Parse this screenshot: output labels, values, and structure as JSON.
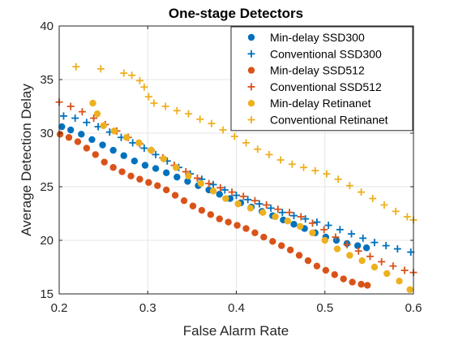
{
  "chart_data": {
    "type": "scatter",
    "title": "One-stage Detectors",
    "xlabel": "False Alarm Rate",
    "ylabel": "Average Detection Delay",
    "xlim": [
      0.2,
      0.6
    ],
    "ylim": [
      15,
      40
    ],
    "xticks": [
      0.2,
      0.3,
      0.4,
      0.5,
      0.6
    ],
    "yticks": [
      15,
      20,
      25,
      30,
      35,
      40
    ],
    "xtick_labels": [
      "0.2",
      "0.3",
      "0.4",
      "0.5",
      "0.6"
    ],
    "ytick_labels": [
      "15",
      "20",
      "25",
      "30",
      "35",
      "40"
    ],
    "grid": true,
    "legend_position": "top-right",
    "series": [
      {
        "name": "Min-delay SSD300",
        "marker": "dot",
        "color": "#0072BD",
        "points": [
          [
            0.203,
            30.6
          ],
          [
            0.213,
            30.3
          ],
          [
            0.225,
            29.9
          ],
          [
            0.237,
            29.4
          ],
          [
            0.249,
            28.9
          ],
          [
            0.261,
            28.4
          ],
          [
            0.273,
            27.9
          ],
          [
            0.285,
            27.4
          ],
          [
            0.297,
            27.0
          ],
          [
            0.309,
            26.7
          ],
          [
            0.321,
            26.3
          ],
          [
            0.333,
            25.9
          ],
          [
            0.345,
            25.5
          ],
          [
            0.357,
            25.1
          ],
          [
            0.369,
            24.7
          ],
          [
            0.381,
            24.3
          ],
          [
            0.393,
            23.9
          ],
          [
            0.405,
            23.5
          ],
          [
            0.417,
            23.1
          ],
          [
            0.429,
            22.7
          ],
          [
            0.441,
            22.3
          ],
          [
            0.453,
            21.9
          ],
          [
            0.465,
            21.5
          ],
          [
            0.477,
            21.1
          ],
          [
            0.489,
            20.7
          ],
          [
            0.501,
            20.3
          ],
          [
            0.513,
            20.0
          ],
          [
            0.525,
            19.7
          ],
          [
            0.537,
            19.5
          ],
          [
            0.547,
            19.3
          ]
        ]
      },
      {
        "name": "Conventional SSD300",
        "marker": "plus",
        "color": "#0072BD",
        "points": [
          [
            0.205,
            31.6
          ],
          [
            0.218,
            31.4
          ],
          [
            0.231,
            31.0
          ],
          [
            0.244,
            30.6
          ],
          [
            0.257,
            30.1
          ],
          [
            0.27,
            29.6
          ],
          [
            0.283,
            29.1
          ],
          [
            0.296,
            28.6
          ],
          [
            0.309,
            28.0
          ],
          [
            0.322,
            27.4
          ],
          [
            0.335,
            26.8
          ],
          [
            0.348,
            26.2
          ],
          [
            0.361,
            25.7
          ],
          [
            0.374,
            25.2
          ],
          [
            0.387,
            24.7
          ],
          [
            0.4,
            24.2
          ],
          [
            0.413,
            23.8
          ],
          [
            0.426,
            23.4
          ],
          [
            0.439,
            23.0
          ],
          [
            0.452,
            22.6
          ],
          [
            0.465,
            22.3
          ],
          [
            0.478,
            22.0
          ],
          [
            0.491,
            21.7
          ],
          [
            0.504,
            21.4
          ],
          [
            0.517,
            21.0
          ],
          [
            0.53,
            20.6
          ],
          [
            0.543,
            20.2
          ],
          [
            0.556,
            19.8
          ],
          [
            0.569,
            19.5
          ],
          [
            0.582,
            19.2
          ],
          [
            0.597,
            18.9
          ]
        ]
      },
      {
        "name": "Min-delay SSD512",
        "marker": "dot",
        "color": "#D95319",
        "points": [
          [
            0.201,
            29.9
          ],
          [
            0.211,
            29.6
          ],
          [
            0.221,
            29.2
          ],
          [
            0.231,
            28.6
          ],
          [
            0.241,
            28.0
          ],
          [
            0.251,
            27.3
          ],
          [
            0.261,
            26.8
          ],
          [
            0.271,
            26.4
          ],
          [
            0.281,
            26.0
          ],
          [
            0.291,
            25.7
          ],
          [
            0.301,
            25.4
          ],
          [
            0.311,
            25.1
          ],
          [
            0.321,
            24.7
          ],
          [
            0.331,
            24.2
          ],
          [
            0.341,
            23.7
          ],
          [
            0.351,
            23.2
          ],
          [
            0.361,
            22.8
          ],
          [
            0.371,
            22.4
          ],
          [
            0.381,
            22.0
          ],
          [
            0.391,
            21.7
          ],
          [
            0.401,
            21.4
          ],
          [
            0.411,
            21.1
          ],
          [
            0.421,
            20.7
          ],
          [
            0.431,
            20.3
          ],
          [
            0.441,
            19.9
          ],
          [
            0.451,
            19.5
          ],
          [
            0.461,
            19.1
          ],
          [
            0.471,
            18.6
          ],
          [
            0.481,
            18.1
          ],
          [
            0.491,
            17.6
          ],
          [
            0.501,
            17.2
          ],
          [
            0.511,
            16.8
          ],
          [
            0.521,
            16.4
          ],
          [
            0.531,
            16.1
          ],
          [
            0.541,
            15.9
          ],
          [
            0.548,
            15.8
          ]
        ]
      },
      {
        "name": "Conventional SSD512",
        "marker": "plus",
        "color": "#D95319",
        "points": [
          [
            0.2,
            32.9
          ],
          [
            0.213,
            32.5
          ],
          [
            0.226,
            32.0
          ],
          [
            0.239,
            31.4
          ],
          [
            0.252,
            30.8
          ],
          [
            0.265,
            30.2
          ],
          [
            0.278,
            29.6
          ],
          [
            0.291,
            29.0
          ],
          [
            0.304,
            28.4
          ],
          [
            0.317,
            27.7
          ],
          [
            0.33,
            27.0
          ],
          [
            0.343,
            26.4
          ],
          [
            0.356,
            25.8
          ],
          [
            0.369,
            25.3
          ],
          [
            0.382,
            24.9
          ],
          [
            0.395,
            24.5
          ],
          [
            0.408,
            24.1
          ],
          [
            0.421,
            23.7
          ],
          [
            0.434,
            23.3
          ],
          [
            0.447,
            22.9
          ],
          [
            0.46,
            22.6
          ],
          [
            0.473,
            22.2
          ],
          [
            0.486,
            21.6
          ],
          [
            0.499,
            21.0
          ],
          [
            0.512,
            20.3
          ],
          [
            0.525,
            19.6
          ],
          [
            0.538,
            19.0
          ],
          [
            0.551,
            18.5
          ],
          [
            0.564,
            18.0
          ],
          [
            0.577,
            17.6
          ],
          [
            0.59,
            17.2
          ],
          [
            0.6,
            17.0
          ]
        ]
      },
      {
        "name": "Min-delay Retinanet",
        "marker": "dot",
        "color": "#EDB120",
        "points": [
          [
            0.238,
            32.8
          ],
          [
            0.243,
            31.8
          ],
          [
            0.25,
            30.7
          ],
          [
            0.262,
            30.2
          ],
          [
            0.276,
            29.6
          ],
          [
            0.29,
            29.1
          ],
          [
            0.304,
            28.4
          ],
          [
            0.318,
            27.6
          ],
          [
            0.332,
            26.8
          ],
          [
            0.346,
            26.0
          ],
          [
            0.36,
            25.3
          ],
          [
            0.374,
            24.6
          ],
          [
            0.388,
            23.9
          ],
          [
            0.402,
            23.4
          ],
          [
            0.416,
            23.0
          ],
          [
            0.43,
            22.6
          ],
          [
            0.444,
            22.2
          ],
          [
            0.458,
            21.8
          ],
          [
            0.472,
            21.3
          ],
          [
            0.486,
            20.7
          ],
          [
            0.5,
            20.0
          ],
          [
            0.514,
            19.2
          ],
          [
            0.528,
            18.6
          ],
          [
            0.542,
            18.1
          ],
          [
            0.556,
            17.5
          ],
          [
            0.57,
            16.9
          ],
          [
            0.584,
            16.2
          ],
          [
            0.596,
            15.4
          ]
        ]
      },
      {
        "name": "Conventional Retinanet",
        "marker": "plus",
        "color": "#EDB120",
        "points": [
          [
            0.219,
            36.2
          ],
          [
            0.247,
            36.0
          ],
          [
            0.273,
            35.6
          ],
          [
            0.282,
            35.4
          ],
          [
            0.291,
            34.9
          ],
          [
            0.296,
            34.3
          ],
          [
            0.301,
            33.4
          ],
          [
            0.307,
            32.8
          ],
          [
            0.32,
            32.5
          ],
          [
            0.333,
            32.1
          ],
          [
            0.346,
            31.8
          ],
          [
            0.359,
            31.3
          ],
          [
            0.372,
            30.9
          ],
          [
            0.385,
            30.3
          ],
          [
            0.398,
            29.7
          ],
          [
            0.411,
            29.1
          ],
          [
            0.424,
            28.5
          ],
          [
            0.437,
            28.0
          ],
          [
            0.45,
            27.5
          ],
          [
            0.463,
            27.1
          ],
          [
            0.476,
            26.8
          ],
          [
            0.489,
            26.5
          ],
          [
            0.502,
            26.2
          ],
          [
            0.515,
            25.7
          ],
          [
            0.528,
            25.1
          ],
          [
            0.541,
            24.5
          ],
          [
            0.554,
            23.9
          ],
          [
            0.567,
            23.3
          ],
          [
            0.58,
            22.7
          ],
          [
            0.593,
            22.2
          ],
          [
            0.6,
            21.9
          ]
        ]
      }
    ]
  }
}
